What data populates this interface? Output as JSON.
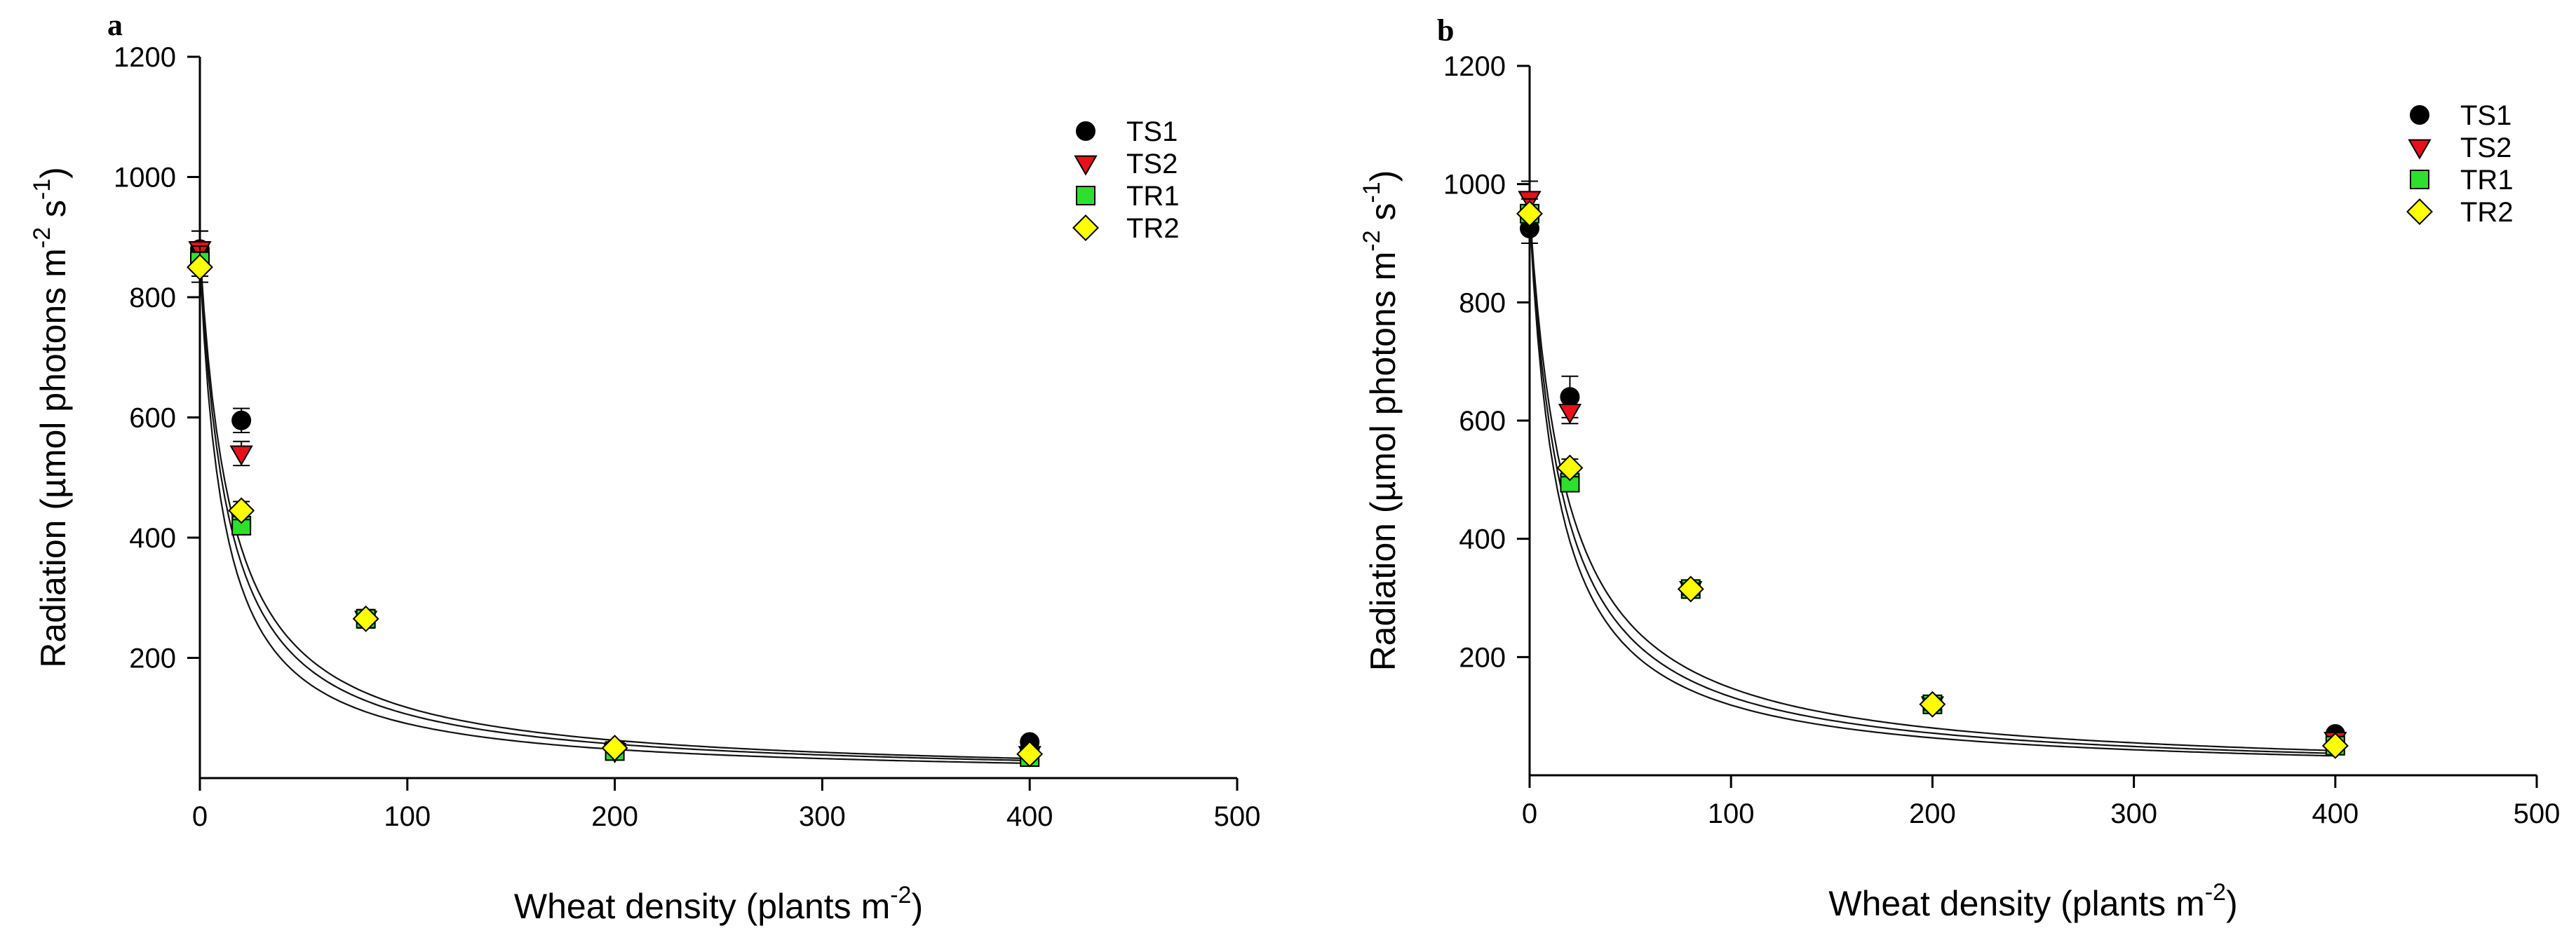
{
  "chart_data": [
    {
      "type": "scatter",
      "panel": "a",
      "xlabel": "Wheat density (plants m",
      "xlabel_sup": "-2",
      "xlabel_end": ")",
      "ylabel": "Radiation (µmol photons m",
      "ylabel_sup1": "-2",
      "ylabel_mid": " s",
      "ylabel_sup2": "-1",
      "ylabel_end": ")",
      "xlim": [
        0,
        500
      ],
      "ylim": [
        0,
        1200
      ],
      "xticks": [
        "0",
        "100",
        "200",
        "300",
        "400",
        "500"
      ],
      "yticks": [
        "200",
        "400",
        "600",
        "800",
        "1000",
        "1200"
      ],
      "x": [
        0,
        20,
        80,
        200,
        400
      ],
      "legend_position": "top-right",
      "series": [
        {
          "name": "TS1",
          "marker": "circle",
          "color": "#000000",
          "values": [
            880,
            595,
            265,
            50,
            60
          ],
          "errors": [
            30,
            20,
            15,
            5,
            5
          ]
        },
        {
          "name": "TS2",
          "marker": "triangle-down",
          "color": "#e8101a",
          "values": [
            880,
            540,
            265,
            45,
            40
          ],
          "errors": [
            30,
            20,
            15,
            5,
            5
          ]
        },
        {
          "name": "TR1",
          "marker": "square",
          "color": "#2ee02e",
          "values": [
            860,
            420,
            265,
            45,
            35
          ],
          "errors": [
            25,
            15,
            15,
            5,
            5
          ]
        },
        {
          "name": "TR2",
          "marker": "diamond",
          "color": "#ffff00",
          "values": [
            850,
            445,
            265,
            50,
            40
          ],
          "errors": [
            25,
            15,
            15,
            5,
            5
          ]
        }
      ],
      "fits": [
        {
          "a": 880,
          "k": 0.065
        },
        {
          "a": 870,
          "k": 0.072
        },
        {
          "a": 860,
          "k": 0.085
        }
      ]
    },
    {
      "type": "scatter",
      "panel": "b",
      "xlabel": "Wheat density (plants m",
      "xlabel_sup": "-2",
      "xlabel_end": ")",
      "ylabel": "Radiation (µmol photons m",
      "ylabel_sup1": "-2",
      "ylabel_mid": " s",
      "ylabel_sup2": "-1",
      "ylabel_end": ")",
      "xlim": [
        0,
        500
      ],
      "ylim": [
        0,
        1200
      ],
      "xticks": [
        "0",
        "100",
        "200",
        "300",
        "400",
        "500"
      ],
      "yticks": [
        "200",
        "400",
        "600",
        "800",
        "1000",
        "1200"
      ],
      "x": [
        0,
        20,
        80,
        200,
        400
      ],
      "legend_position": "top-right",
      "series": [
        {
          "name": "TS1",
          "marker": "circle",
          "color": "#000000",
          "values": [
            925,
            640,
            315,
            120,
            70
          ],
          "errors": [
            25,
            35,
            10,
            10,
            5
          ]
        },
        {
          "name": "TS2",
          "marker": "triangle-down",
          "color": "#e8101a",
          "values": [
            975,
            615,
            315,
            120,
            60
          ],
          "errors": [
            30,
            20,
            10,
            10,
            5
          ]
        },
        {
          "name": "TR1",
          "marker": "square",
          "color": "#2ee02e",
          "values": [
            950,
            495,
            315,
            120,
            50
          ],
          "errors": [
            25,
            15,
            10,
            10,
            5
          ]
        },
        {
          "name": "TR2",
          "marker": "diamond",
          "color": "#ffff00",
          "values": [
            950,
            520,
            315,
            120,
            50
          ],
          "errors": [
            25,
            15,
            10,
            10,
            5
          ]
        }
      ],
      "fits": [
        {
          "a": 960,
          "k": 0.055
        },
        {
          "a": 955,
          "k": 0.062
        },
        {
          "a": 950,
          "k": 0.07
        }
      ]
    }
  ]
}
